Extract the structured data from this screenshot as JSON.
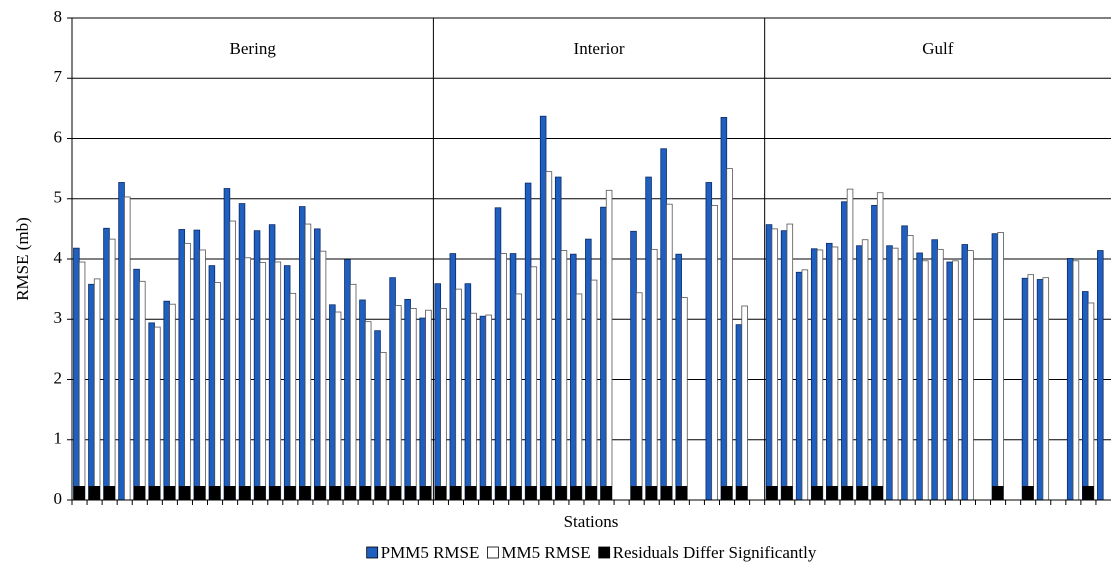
{
  "chart_data": {
    "type": "bar",
    "ylabel": "RMSE (mb)",
    "xlabel": "Stations",
    "ylim": [
      0,
      8
    ],
    "yticks": [
      0,
      1,
      2,
      3,
      4,
      5,
      6,
      7,
      8
    ],
    "grid": true,
    "series": [
      {
        "name": "PMM5 RMSE",
        "color": "#1f5fbf"
      },
      {
        "name": "MM5 RMSE",
        "color": "#ffffff"
      },
      {
        "name": "Residuals Differ Significantly",
        "color": "#000000"
      }
    ],
    "regions": [
      {
        "name": "Bering",
        "pmm5": [
          4.18,
          3.58,
          4.51,
          5.27,
          3.83,
          2.94,
          3.3,
          4.49,
          4.48,
          3.89,
          5.17,
          4.92,
          4.47,
          4.57,
          3.89,
          4.87,
          4.5,
          3.24,
          3.99,
          3.32,
          2.81,
          3.69,
          3.33,
          3.02
        ],
        "mm5": [
          3.95,
          3.67,
          4.33,
          5.03,
          3.63,
          2.87,
          3.25,
          4.26,
          4.15,
          3.61,
          4.63,
          4.02,
          3.94,
          3.95,
          3.43,
          4.58,
          4.13,
          3.12,
          3.58,
          2.96,
          2.45,
          3.23,
          3.18,
          3.15
        ],
        "significant": [
          true,
          true,
          true,
          false,
          true,
          true,
          true,
          true,
          true,
          true,
          true,
          true,
          true,
          true,
          true,
          true,
          true,
          true,
          true,
          true,
          true,
          true,
          true,
          true
        ]
      },
      {
        "name": "Interior",
        "pmm5": [
          3.59,
          4.09,
          3.59,
          3.05,
          4.85,
          4.09,
          5.26,
          6.37,
          5.36,
          4.08,
          4.33,
          4.86,
          null,
          4.46,
          5.36,
          5.83,
          4.08,
          null,
          5.27,
          6.35,
          2.91,
          null
        ],
        "mm5": [
          3.18,
          3.5,
          3.1,
          3.07,
          4.09,
          3.42,
          3.87,
          5.45,
          4.14,
          3.42,
          3.65,
          5.14,
          null,
          3.44,
          4.16,
          4.91,
          3.36,
          null,
          4.89,
          5.5,
          3.22,
          null
        ],
        "significant": [
          true,
          true,
          true,
          true,
          true,
          true,
          true,
          true,
          true,
          true,
          true,
          true,
          false,
          true,
          true,
          true,
          true,
          false,
          false,
          true,
          true,
          false
        ]
      },
      {
        "name": "Gulf",
        "pmm5": [
          4.57,
          4.47,
          3.78,
          4.17,
          4.26,
          4.95,
          4.22,
          4.89,
          4.22,
          4.55,
          4.1,
          4.32,
          3.95,
          4.24,
          null,
          4.42,
          null,
          3.68,
          3.66,
          null,
          4.01,
          3.46,
          4.14
        ],
        "mm5": [
          4.5,
          4.58,
          3.82,
          4.15,
          4.2,
          5.16,
          4.32,
          5.1,
          4.18,
          4.39,
          3.97,
          4.16,
          3.97,
          4.14,
          null,
          4.44,
          null,
          3.74,
          3.69,
          null,
          3.97,
          3.27,
          null
        ],
        "significant": [
          true,
          true,
          false,
          true,
          true,
          true,
          true,
          true,
          false,
          false,
          false,
          false,
          false,
          false,
          false,
          true,
          false,
          true,
          false,
          false,
          false,
          true,
          false
        ]
      }
    ]
  }
}
